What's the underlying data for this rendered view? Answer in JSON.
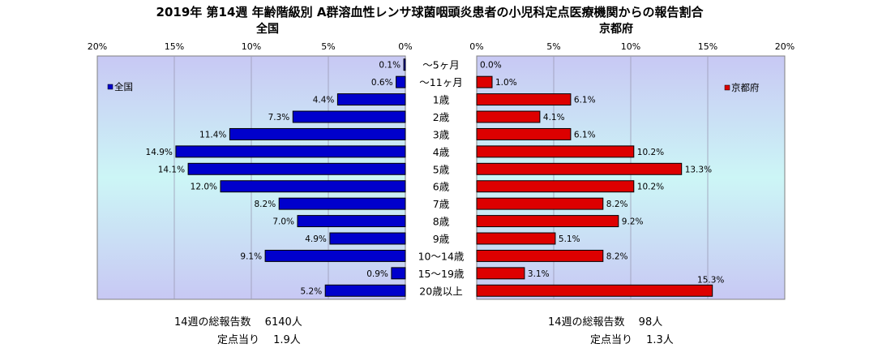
{
  "chart_data": {
    "type": "bar",
    "title": "2019年 第14週 年齢階級別 A群溶血性レンサ球菌咽頭炎患者の小児科定点医療機関からの報告割合",
    "categories": [
      "〜5ヶ月",
      "〜11ヶ月",
      "1歳",
      "2歳",
      "3歳",
      "4歳",
      "5歳",
      "6歳",
      "7歳",
      "8歳",
      "9歳",
      "10〜14歳",
      "15〜19歳",
      "20歳以上"
    ],
    "xlim": [
      0,
      20
    ],
    "x_ticks": [
      "20%",
      "15%",
      "10%",
      "5%",
      "0%"
    ],
    "x_ticks_right": [
      "0%",
      "5%",
      "10%",
      "15%",
      "20%"
    ],
    "grid": true,
    "panels": [
      {
        "title": "全国",
        "series": [
          {
            "name": "全国",
            "color": "#0000cc",
            "values": [
              0.1,
              0.6,
              4.4,
              7.3,
              11.4,
              14.9,
              14.1,
              12.0,
              8.2,
              7.0,
              4.9,
              9.1,
              0.9,
              5.2
            ]
          }
        ],
        "labels": [
          "0.1%",
          "0.6%",
          "4.4%",
          "7.3%",
          "11.4%",
          "14.9%",
          "14.1%",
          "12.0%",
          "8.2%",
          "7.0%",
          "4.9%",
          "9.1%",
          "0.9%",
          "5.2%"
        ],
        "legend_position": "top-left",
        "direction": "left"
      },
      {
        "title": "京都府",
        "series": [
          {
            "name": "京都府",
            "color": "#dd0000",
            "values": [
              0.0,
              1.0,
              6.1,
              4.1,
              6.1,
              10.2,
              13.3,
              10.2,
              8.2,
              9.2,
              5.1,
              8.2,
              3.1,
              15.3
            ]
          }
        ],
        "labels": [
          "0.0%",
          "1.0%",
          "6.1%",
          "4.1%",
          "6.1%",
          "10.2%",
          "13.3%",
          "10.2%",
          "8.2%",
          "9.2%",
          "5.1%",
          "8.2%",
          "3.1%",
          "15.3%"
        ],
        "legend_position": "top-right",
        "direction": "right"
      }
    ]
  },
  "footer": {
    "left_total": "14週の総報告数　 6140人",
    "left_per_site": "定点当り　 1.9人",
    "right_total": "14週の総報告数　 98人",
    "right_per_site": "定点当り　 1.3人"
  }
}
